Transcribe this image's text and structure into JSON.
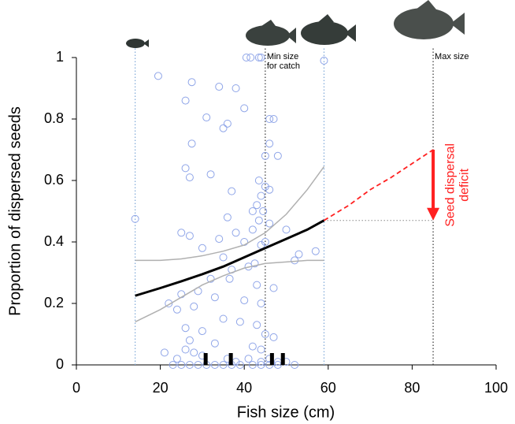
{
  "chart_data": {
    "type": "scatter",
    "xlabel": "Fish size (cm)",
    "ylabel": "Proportion of dispersed seeds",
    "xlim": [
      0,
      100
    ],
    "ylim": [
      0,
      1
    ],
    "xticks": [
      0,
      20,
      40,
      60,
      80,
      100
    ],
    "yticks": [
      0,
      0.2,
      0.4,
      0.6,
      0.8,
      1
    ],
    "points": {
      "color": "#8fa5e8",
      "x": [
        14,
        19.5,
        27.5,
        26,
        34,
        38,
        40,
        36,
        35,
        31,
        46,
        47,
        27.5,
        46,
        45,
        48,
        26,
        27,
        32,
        37,
        43.5,
        45,
        44,
        46,
        43,
        44.5,
        42,
        43.5,
        36,
        38,
        42,
        46,
        50,
        25,
        27,
        30,
        34,
        40,
        44,
        45,
        53,
        52,
        57,
        35,
        42.5,
        37,
        41,
        32,
        36.5,
        43,
        47,
        29,
        25,
        33,
        40,
        44,
        22,
        24,
        28,
        35,
        39,
        43,
        26,
        30,
        45,
        47,
        27,
        33,
        42,
        44,
        26,
        28,
        21,
        24,
        30,
        36,
        38,
        41,
        44,
        46,
        48,
        50,
        52,
        23,
        25,
        27,
        29,
        31,
        33,
        35,
        37,
        39,
        42,
        44,
        46,
        48,
        59,
        40.5,
        41.5,
        43.5,
        44
      ],
      "y": [
        0.475,
        0.94,
        0.92,
        0.86,
        0.905,
        0.9,
        0.835,
        0.785,
        0.77,
        0.805,
        0.8,
        0.8,
        0.72,
        0.72,
        0.68,
        0.68,
        0.64,
        0.61,
        0.62,
        0.565,
        0.6,
        0.58,
        0.55,
        0.57,
        0.52,
        0.5,
        0.5,
        0.47,
        0.48,
        0.43,
        0.44,
        0.46,
        0.44,
        0.43,
        0.42,
        0.38,
        0.41,
        0.4,
        0.39,
        0.4,
        0.36,
        0.34,
        0.37,
        0.35,
        0.33,
        0.31,
        0.32,
        0.28,
        0.28,
        0.26,
        0.25,
        0.24,
        0.23,
        0.22,
        0.21,
        0.2,
        0.2,
        0.18,
        0.19,
        0.15,
        0.14,
        0.13,
        0.12,
        0.11,
        0.1,
        0.09,
        0.08,
        0.07,
        0.06,
        0.05,
        0.05,
        0.04,
        0.04,
        0.02,
        0.03,
        0.02,
        0.01,
        0.02,
        0.01,
        0.02,
        0.01,
        0.01,
        0,
        0,
        0,
        0,
        0,
        0,
        0,
        0,
        0,
        0,
        0,
        0,
        0,
        0,
        0.99,
        1,
        1,
        1,
        1
      ]
    },
    "fit": {
      "color": "#000000",
      "x": [
        14,
        20,
        25,
        30,
        35,
        40,
        45,
        50,
        55,
        59
      ],
      "values": [
        0.225,
        0.25,
        0.272,
        0.295,
        0.32,
        0.35,
        0.38,
        0.41,
        0.44,
        0.47
      ]
    },
    "ci_upper": {
      "color": "#b0b0b0",
      "x": [
        14,
        20,
        25,
        30,
        35,
        40,
        45,
        50,
        55,
        59
      ],
      "values": [
        0.34,
        0.34,
        0.345,
        0.355,
        0.37,
        0.39,
        0.43,
        0.49,
        0.57,
        0.645
      ]
    },
    "ci_lower": {
      "color": "#b0b0b0",
      "x": [
        14,
        20,
        25,
        30,
        35,
        40,
        45,
        50,
        55,
        59
      ],
      "values": [
        0.14,
        0.18,
        0.22,
        0.26,
        0.29,
        0.315,
        0.33,
        0.335,
        0.34,
        0.34
      ]
    },
    "extrapolation": {
      "color": "#ff2020",
      "x": [
        59,
        65,
        70,
        75,
        80,
        85
      ],
      "values": [
        0.47,
        0.52,
        0.57,
        0.61,
        0.655,
        0.7
      ]
    },
    "reference_lines": [
      {
        "x": 14,
        "color": "#7fa8d8"
      },
      {
        "x": 45,
        "color": "#333333",
        "label": [
          "Min size",
          "for catch"
        ]
      },
      {
        "x": 59,
        "color": "#7fa8d8"
      },
      {
        "x": 85,
        "color": "#333333",
        "label": [
          "Max size"
        ]
      }
    ],
    "deficit_line": {
      "x": [
        59,
        85
      ],
      "y": 0.47,
      "color": "#888888"
    },
    "deficit_arrow": {
      "x": 85,
      "from": 0.7,
      "to": 0.47,
      "color": "#ff2020",
      "label": [
        "Seed dispersal",
        "deficit"
      ]
    },
    "rug": {
      "color": "#000000",
      "x": [
        30.8,
        36.8,
        46.6,
        49.2
      ]
    }
  }
}
